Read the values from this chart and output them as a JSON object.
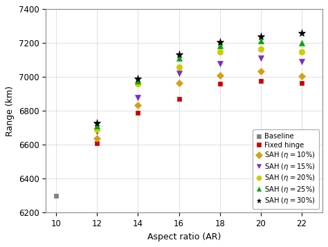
{
  "ar": [
    10,
    12,
    14,
    16,
    18,
    20,
    22
  ],
  "baseline": [
    6300,
    null,
    null,
    null,
    null,
    null,
    null
  ],
  "fixed_hinge": [
    null,
    6610,
    6790,
    6870,
    6960,
    6975,
    6965
  ],
  "sah_10": [
    null,
    6640,
    6835,
    6965,
    7010,
    7035,
    7005
  ],
  "sah_15": [
    null,
    6680,
    6880,
    7020,
    7080,
    7110,
    7090
  ],
  "sah_20": [
    null,
    6690,
    6960,
    7060,
    7150,
    7165,
    7150
  ],
  "sah_25": [
    null,
    6710,
    6975,
    7110,
    7185,
    7215,
    7200
  ],
  "sah_30": [
    null,
    6730,
    6990,
    7130,
    7205,
    7240,
    7260
  ],
  "colors": {
    "baseline": "#808080",
    "fixed_hinge": "#cc0000",
    "sah_10": "#d4a017",
    "sah_15": "#7b2fbe",
    "sah_20": "#cccc00",
    "sah_25": "#00aa00",
    "sah_30": "#000000"
  },
  "ylabel": "Range (km)",
  "xlabel": "Aspect ratio (AR)",
  "ylim": [
    6200,
    7400
  ],
  "xlim": [
    9.5,
    23.0
  ],
  "xticks": [
    10,
    12,
    14,
    16,
    18,
    20,
    22
  ],
  "yticks": [
    6200,
    6400,
    6600,
    6800,
    7000,
    7200,
    7400
  ],
  "legend_labels": [
    "Baseline",
    "Fixed hinge",
    "SAH ($\\eta = 10\\%$)",
    "SAH ($\\eta = 15\\%$)",
    "SAH ($\\eta = 20\\%$)",
    "SAH ($\\eta = 25\\%$)",
    "SAH ($\\eta = 30\\%$)"
  ]
}
